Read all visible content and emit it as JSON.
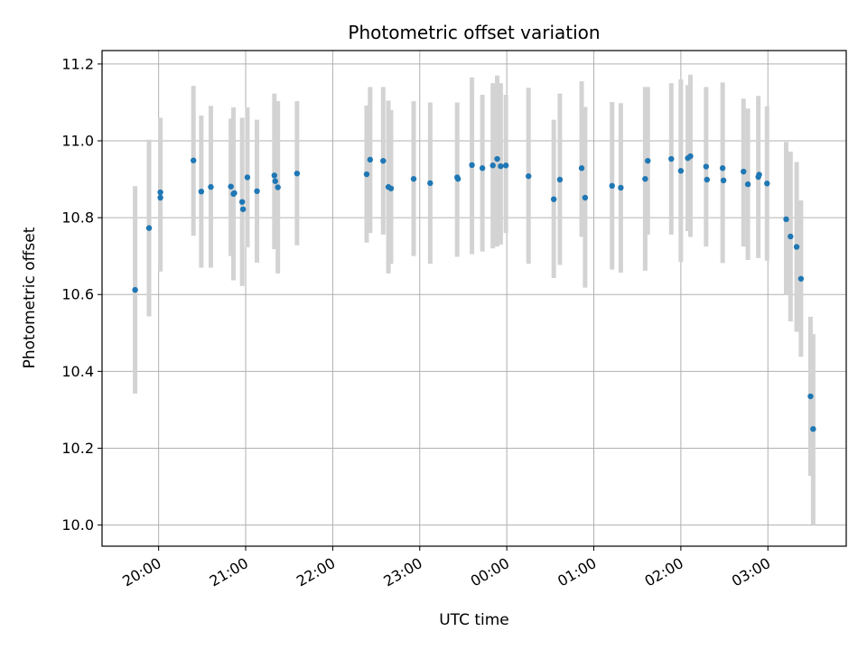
{
  "chart_data": {
    "type": "scatter",
    "title": "Photometric offset variation",
    "xlabel": "UTC time",
    "ylabel": "Photometric offset",
    "x_unit": "hours since 20:00 UTC",
    "xlim": [
      -0.65,
      7.9
    ],
    "ylim": [
      9.945,
      11.235
    ],
    "grid": true,
    "x_ticks": [
      {
        "value": 0,
        "label": "20:00"
      },
      {
        "value": 1,
        "label": "21:00"
      },
      {
        "value": 2,
        "label": "22:00"
      },
      {
        "value": 3,
        "label": "23:00"
      },
      {
        "value": 4,
        "label": "00:00"
      },
      {
        "value": 5,
        "label": "01:00"
      },
      {
        "value": 6,
        "label": "02:00"
      },
      {
        "value": 7,
        "label": "03:00"
      }
    ],
    "y_ticks": [
      {
        "value": 10.0,
        "label": "10.0"
      },
      {
        "value": 10.2,
        "label": "10.2"
      },
      {
        "value": 10.4,
        "label": "10.4"
      },
      {
        "value": 10.6,
        "label": "10.6"
      },
      {
        "value": 10.8,
        "label": "10.8"
      },
      {
        "value": 11.0,
        "label": "11.0"
      },
      {
        "value": 11.2,
        "label": "11.2"
      }
    ],
    "colors": {
      "points": "#1f77b4",
      "errorbars": "#d3d3d3",
      "grid": "#b0b0b0"
    },
    "points": [
      {
        "x": -0.27,
        "y": 10.612,
        "lo": 10.342,
        "hi": 10.882
      },
      {
        "x": -0.11,
        "y": 10.773,
        "lo": 10.543,
        "hi": 11.003
      },
      {
        "x": 0.02,
        "y": 10.852,
        "lo": 10.66,
        "hi": 11.06
      },
      {
        "x": 0.02,
        "y": 10.866
      },
      {
        "x": 0.4,
        "y": 10.949,
        "lo": 10.753,
        "hi": 11.143
      },
      {
        "x": 0.49,
        "y": 10.868,
        "lo": 10.67,
        "hi": 11.066
      },
      {
        "x": 0.6,
        "y": 10.88,
        "lo": 10.67,
        "hi": 11.091
      },
      {
        "x": 0.83,
        "y": 10.881,
        "lo": 10.7,
        "hi": 11.058
      },
      {
        "x": 0.86,
        "y": 10.862,
        "lo": 10.637,
        "hi": 11.087
      },
      {
        "x": 0.87,
        "y": 10.864
      },
      {
        "x": 0.96,
        "y": 10.841,
        "lo": 10.622,
        "hi": 11.06
      },
      {
        "x": 0.97,
        "y": 10.822
      },
      {
        "x": 1.02,
        "y": 10.905,
        "lo": 10.723,
        "hi": 11.087
      },
      {
        "x": 1.13,
        "y": 10.869,
        "lo": 10.683,
        "hi": 11.055
      },
      {
        "x": 1.33,
        "y": 10.91,
        "lo": 10.718,
        "hi": 11.123
      },
      {
        "x": 1.34,
        "y": 10.895
      },
      {
        "x": 1.37,
        "y": 10.879,
        "lo": 10.655,
        "hi": 11.103
      },
      {
        "x": 1.59,
        "y": 10.915,
        "lo": 10.728,
        "hi": 11.103
      },
      {
        "x": 2.39,
        "y": 10.913,
        "lo": 10.735,
        "hi": 11.092
      },
      {
        "x": 2.43,
        "y": 10.951,
        "lo": 10.76,
        "hi": 11.14
      },
      {
        "x": 2.58,
        "y": 10.948,
        "lo": 10.756,
        "hi": 11.14
      },
      {
        "x": 2.64,
        "y": 10.88,
        "lo": 10.655,
        "hi": 11.105
      },
      {
        "x": 2.67,
        "y": 10.876,
        "lo": 10.68,
        "hi": 11.08
      },
      {
        "x": 2.93,
        "y": 10.901,
        "lo": 10.7,
        "hi": 11.103
      },
      {
        "x": 3.12,
        "y": 10.89,
        "lo": 10.68,
        "hi": 11.1
      },
      {
        "x": 3.43,
        "y": 10.905,
        "lo": 10.698,
        "hi": 11.1
      },
      {
        "x": 3.44,
        "y": 10.901
      },
      {
        "x": 3.6,
        "y": 10.937,
        "lo": 10.705,
        "hi": 11.165
      },
      {
        "x": 3.72,
        "y": 10.929,
        "lo": 10.712,
        "hi": 11.12
      },
      {
        "x": 3.84,
        "y": 10.936,
        "lo": 10.72,
        "hi": 11.15
      },
      {
        "x": 3.89,
        "y": 10.953,
        "lo": 10.725,
        "hi": 11.17
      },
      {
        "x": 3.93,
        "y": 10.934,
        "lo": 10.73,
        "hi": 11.15
      },
      {
        "x": 3.99,
        "y": 10.936,
        "lo": 10.76,
        "hi": 11.12
      },
      {
        "x": 4.25,
        "y": 10.908,
        "lo": 10.68,
        "hi": 11.138
      },
      {
        "x": 4.54,
        "y": 10.848,
        "lo": 10.643,
        "hi": 11.055
      },
      {
        "x": 4.61,
        "y": 10.899,
        "lo": 10.677,
        "hi": 11.123
      },
      {
        "x": 4.86,
        "y": 10.929,
        "lo": 10.75,
        "hi": 11.155
      },
      {
        "x": 4.9,
        "y": 10.852,
        "lo": 10.618,
        "hi": 11.088
      },
      {
        "x": 5.21,
        "y": 10.883,
        "lo": 10.665,
        "hi": 11.101
      },
      {
        "x": 5.31,
        "y": 10.878,
        "lo": 10.657,
        "hi": 11.098
      },
      {
        "x": 5.59,
        "y": 10.901,
        "lo": 10.662,
        "hi": 11.14
      },
      {
        "x": 5.62,
        "y": 10.948,
        "lo": 10.756,
        "hi": 11.14
      },
      {
        "x": 5.89,
        "y": 10.953,
        "lo": 10.756,
        "hi": 11.15
      },
      {
        "x": 6.0,
        "y": 10.922,
        "lo": 10.685,
        "hi": 11.16
      },
      {
        "x": 6.08,
        "y": 10.955,
        "lo": 10.765,
        "hi": 11.145
      },
      {
        "x": 6.11,
        "y": 10.96,
        "lo": 10.75,
        "hi": 11.172
      },
      {
        "x": 6.29,
        "y": 10.933,
        "lo": 10.725,
        "hi": 11.14
      },
      {
        "x": 6.3,
        "y": 10.899
      },
      {
        "x": 6.48,
        "y": 10.929,
        "lo": 10.682,
        "hi": 11.152
      },
      {
        "x": 6.49,
        "y": 10.897
      },
      {
        "x": 6.72,
        "y": 10.92,
        "lo": 10.725,
        "hi": 11.11
      },
      {
        "x": 6.77,
        "y": 10.887,
        "lo": 10.69,
        "hi": 11.084
      },
      {
        "x": 6.89,
        "y": 10.906,
        "lo": 10.695,
        "hi": 11.117
      },
      {
        "x": 6.9,
        "y": 10.912
      },
      {
        "x": 6.99,
        "y": 10.889,
        "lo": 10.688,
        "hi": 11.09
      },
      {
        "x": 7.21,
        "y": 10.796,
        "lo": 10.6,
        "hi": 10.997
      },
      {
        "x": 7.26,
        "y": 10.751,
        "lo": 10.53,
        "hi": 10.972
      },
      {
        "x": 7.33,
        "y": 10.724,
        "lo": 10.503,
        "hi": 10.945
      },
      {
        "x": 7.38,
        "y": 10.641,
        "lo": 10.438,
        "hi": 10.845
      },
      {
        "x": 7.49,
        "y": 10.335,
        "lo": 10.128,
        "hi": 10.542
      },
      {
        "x": 7.52,
        "y": 10.25,
        "lo": 10.0,
        "hi": 10.497
      }
    ]
  }
}
